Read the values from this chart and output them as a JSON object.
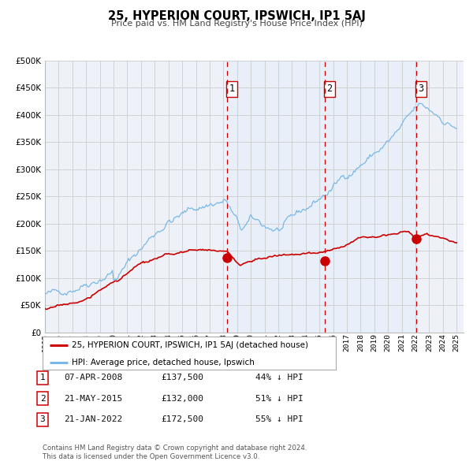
{
  "title": "25, HYPERION COURT, IPSWICH, IP1 5AJ",
  "subtitle": "Price paid vs. HM Land Registry's House Price Index (HPI)",
  "legend_label_red": "25, HYPERION COURT, IPSWICH, IP1 5AJ (detached house)",
  "legend_label_blue": "HPI: Average price, detached house, Ipswich",
  "footnote1": "Contains HM Land Registry data © Crown copyright and database right 2024.",
  "footnote2": "This data is licensed under the Open Government Licence v3.0.",
  "table": [
    {
      "num": "1",
      "date": "07-APR-2008",
      "price": "£137,500",
      "pct": "44% ↓ HPI"
    },
    {
      "num": "2",
      "date": "21-MAY-2015",
      "price": "£132,000",
      "pct": "51% ↓ HPI"
    },
    {
      "num": "3",
      "date": "21-JAN-2022",
      "price": "£172,500",
      "pct": "55% ↓ HPI"
    }
  ],
  "vline_dates": [
    2008.27,
    2015.38,
    2022.05
  ],
  "sale_dates": [
    2008.27,
    2015.38,
    2022.05
  ],
  "sale_prices": [
    137500,
    132000,
    172500
  ],
  "ylim": [
    0,
    500000
  ],
  "xlim": [
    1995,
    2025.5
  ],
  "yticks": [
    0,
    50000,
    100000,
    150000,
    200000,
    250000,
    300000,
    350000,
    400000,
    450000,
    500000
  ],
  "xticks": [
    1995,
    1996,
    1997,
    1998,
    1999,
    2000,
    2001,
    2002,
    2003,
    2004,
    2005,
    2006,
    2007,
    2008,
    2009,
    2010,
    2011,
    2012,
    2013,
    2014,
    2015,
    2016,
    2017,
    2018,
    2019,
    2020,
    2021,
    2022,
    2023,
    2024,
    2025
  ],
  "red_color": "#cc0000",
  "blue_line_color": "#7ab8e8",
  "blue_fill_color": "#ddeaf8",
  "vline_color": "#cc0000",
  "grid_color": "#cccccc",
  "bg_color": "#eef2f8",
  "fig_bg": "#ffffff"
}
